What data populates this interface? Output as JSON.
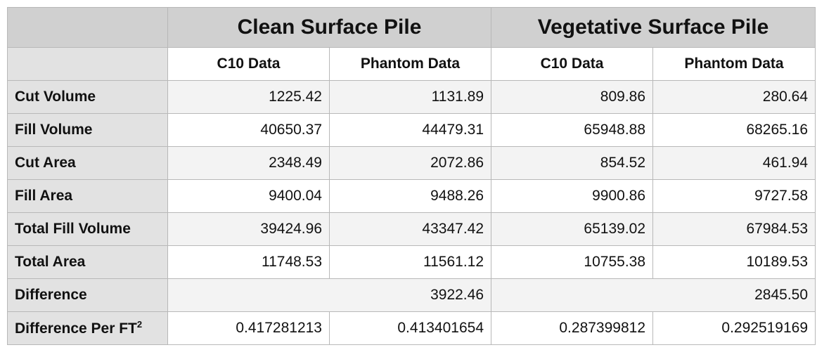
{
  "groups": [
    {
      "label": "Clean Surface Pile"
    },
    {
      "label": "Vegetative Surface Pile"
    }
  ],
  "subheaders": [
    "C10 Data",
    "Phantom Data",
    "C10 Data",
    "Phantom Data"
  ],
  "rows": [
    {
      "label": "Cut Volume",
      "values": [
        "1225.42",
        "1131.89",
        "809.86",
        "280.64"
      ]
    },
    {
      "label": "Fill Volume",
      "values": [
        "40650.37",
        "44479.31",
        "65948.88",
        "68265.16"
      ]
    },
    {
      "label": "Cut Area",
      "values": [
        "2348.49",
        "2072.86",
        "854.52",
        "461.94"
      ]
    },
    {
      "label": "Fill Area",
      "values": [
        "9400.04",
        "9488.26",
        "9900.86",
        "9727.58"
      ]
    },
    {
      "label": "Total Fill Volume",
      "values": [
        "39424.96",
        "43347.42",
        "65139.02",
        "67984.53"
      ]
    },
    {
      "label": "Total Area",
      "values": [
        "11748.53",
        "11561.12",
        "10755.38",
        "10189.53"
      ]
    }
  ],
  "difference": {
    "label": "Difference",
    "values": [
      "3922.46",
      "2845.50"
    ]
  },
  "difference_per_ft": {
    "label": "Difference Per FT",
    "superscript": "2",
    "values": [
      "0.417281213",
      "0.413401654",
      "0.287399812",
      "0.292519169"
    ]
  }
}
